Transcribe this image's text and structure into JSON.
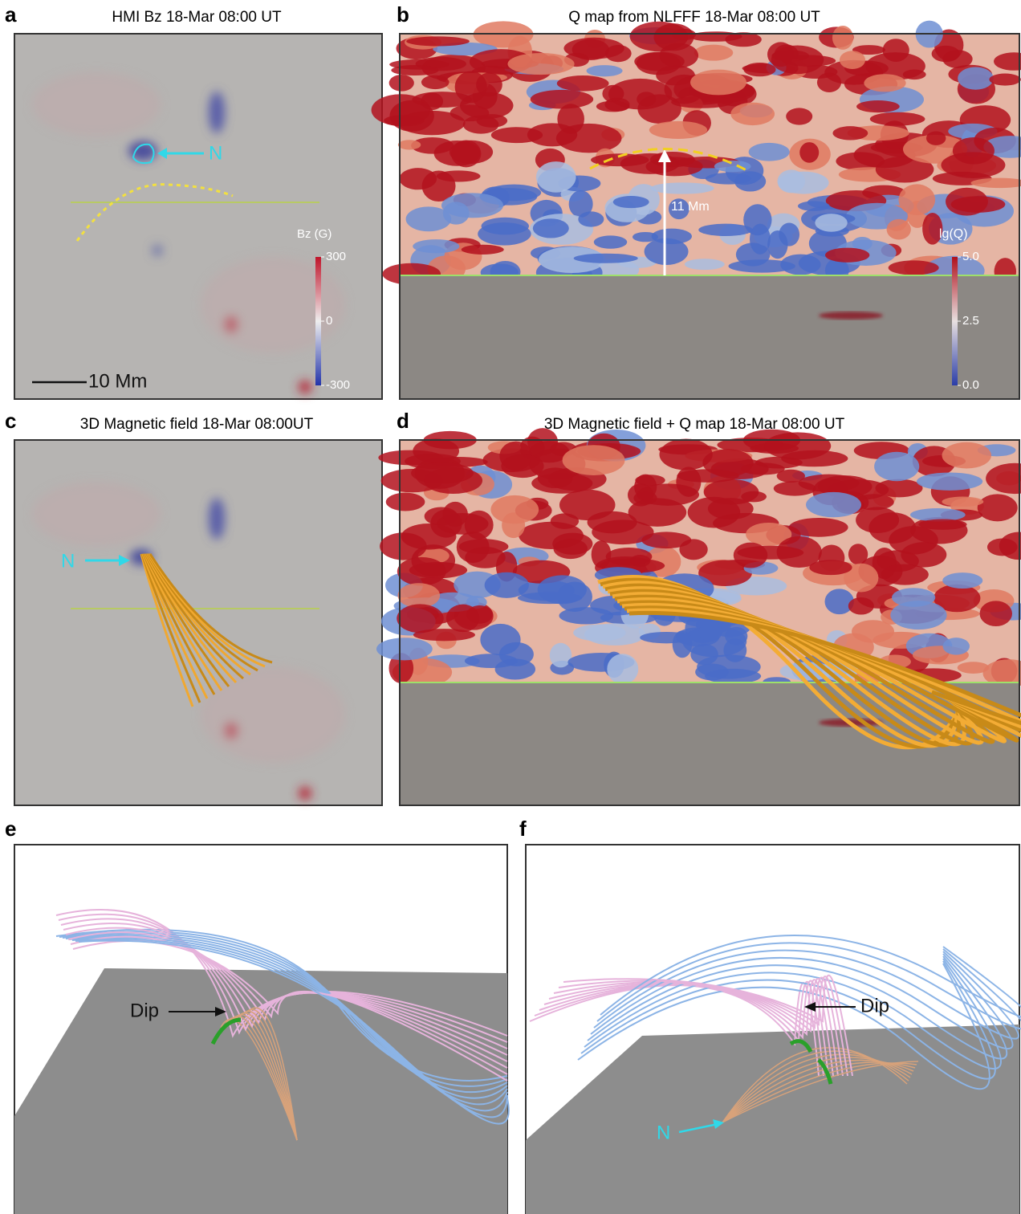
{
  "panels": [
    {
      "label": "a",
      "title": "HMI Bz 18-Mar 08:00 UT",
      "annotations": [
        "N",
        "10 Mm"
      ],
      "colorbar": {
        "label": "Bz (G)",
        "lim": [
          -300,
          300
        ],
        "ticks": [
          300,
          0,
          -300
        ]
      }
    },
    {
      "label": "b",
      "title": "Q map from NLFFF 18-Mar 08:00 UT",
      "annotations": [
        "11 Mm"
      ],
      "colorbar": {
        "label": "lg(Q)",
        "lim": [
          0,
          5
        ],
        "ticks": [
          {
            "value": 5,
            "label": "5.0"
          },
          2.5,
          {
            "value": 0,
            "label": "0.0"
          }
        ]
      }
    },
    {
      "label": "c",
      "title": "3D Magnetic field 18-Mar 08:00UT",
      "annotations": [
        "N"
      ]
    },
    {
      "label": "d",
      "title": "3D Magnetic field + Q map 18-Mar 08:00 UT"
    },
    {
      "label": "e",
      "annotations": [
        "Dip"
      ]
    },
    {
      "label": "f",
      "annotations": [
        "Dip",
        "N"
      ]
    }
  ]
}
